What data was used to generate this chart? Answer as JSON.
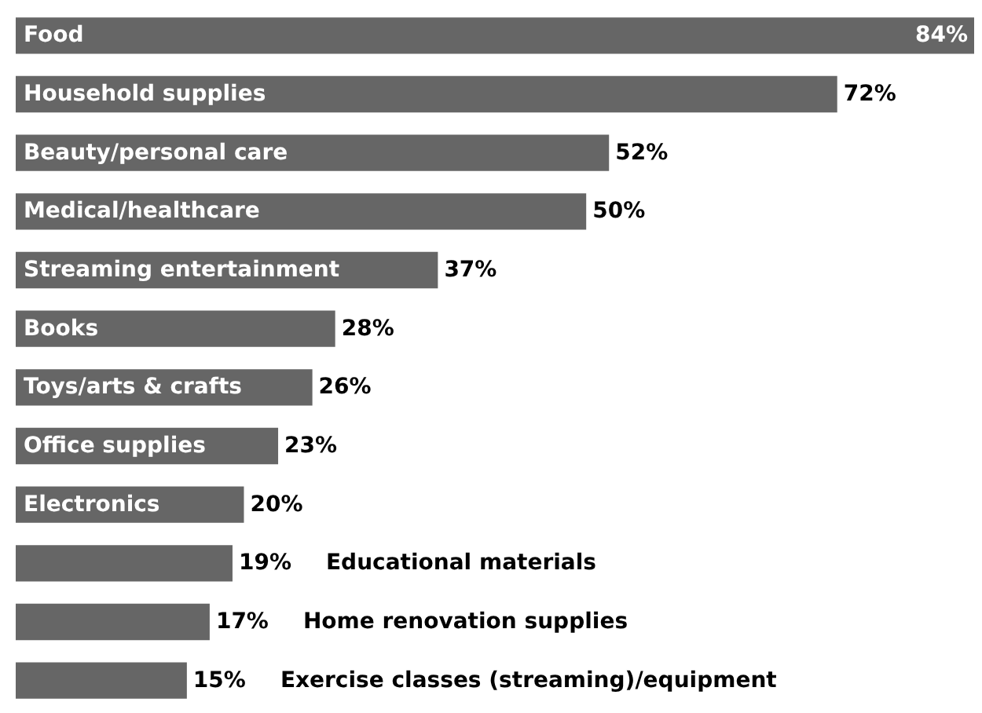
{
  "chart_data": {
    "type": "bar",
    "orientation": "horizontal",
    "categories": [
      "Food",
      "Household supplies",
      "Beauty/personal care",
      "Medical/healthcare",
      "Streaming entertainment",
      "Books",
      "Toys/arts & crafts",
      "Office supplies",
      "Electronics",
      "Educational materials",
      "Home renovation supplies",
      "Exercise classes (streaming)/equipment"
    ],
    "values": [
      84,
      72,
      52,
      50,
      37,
      28,
      26,
      23,
      20,
      19,
      17,
      15
    ],
    "value_labels": [
      "84%",
      "72%",
      "52%",
      "50%",
      "37%",
      "28%",
      "26%",
      "23%",
      "20%",
      "19%",
      "17%",
      "15%"
    ],
    "color": "#666666"
  }
}
